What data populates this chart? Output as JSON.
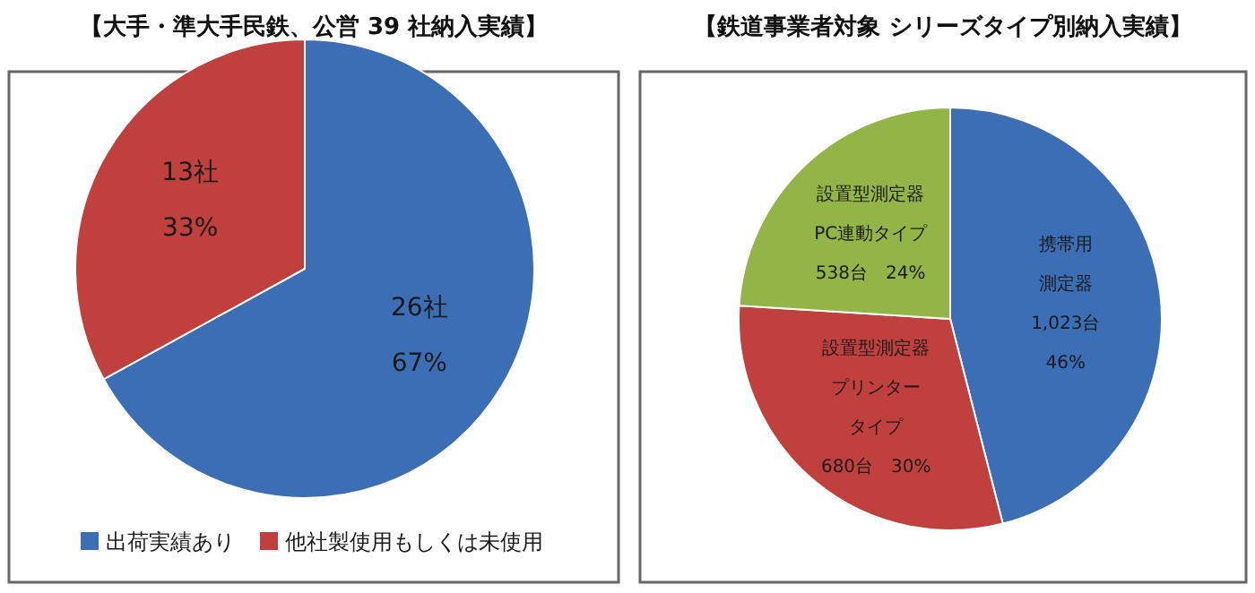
{
  "chart_data": [
    {
      "type": "pie",
      "title": "【大手・準大手民鉄、公営 39 社納入実績】",
      "categories": [
        "出荷実績あり",
        "他社製使用もしくは未使用"
      ],
      "values": [
        67,
        33
      ],
      "colors": [
        "#3b6eb4",
        "#c0403e"
      ],
      "value_labels": [
        [
          "26社",
          "67%"
        ],
        [
          "13社",
          "33%"
        ]
      ],
      "legend": "bottom"
    },
    {
      "type": "pie",
      "title": "【鉄道事業者対象 シリーズタイプ別納入実績】",
      "categories": [
        null,
        null,
        null
      ],
      "values": [
        46,
        30,
        24
      ],
      "colors": [
        "#3b6eb4",
        "#c0403e",
        "#93b446"
      ],
      "value_labels": [
        [
          "携帯用",
          "測定器",
          "1,023台",
          "46%"
        ],
        [
          "設置型測定器",
          "プリンター",
          "タイプ",
          "680台　30%"
        ],
        [
          "設置型測定器",
          "PC連動タイプ",
          "538台　24%"
        ]
      ]
    }
  ]
}
